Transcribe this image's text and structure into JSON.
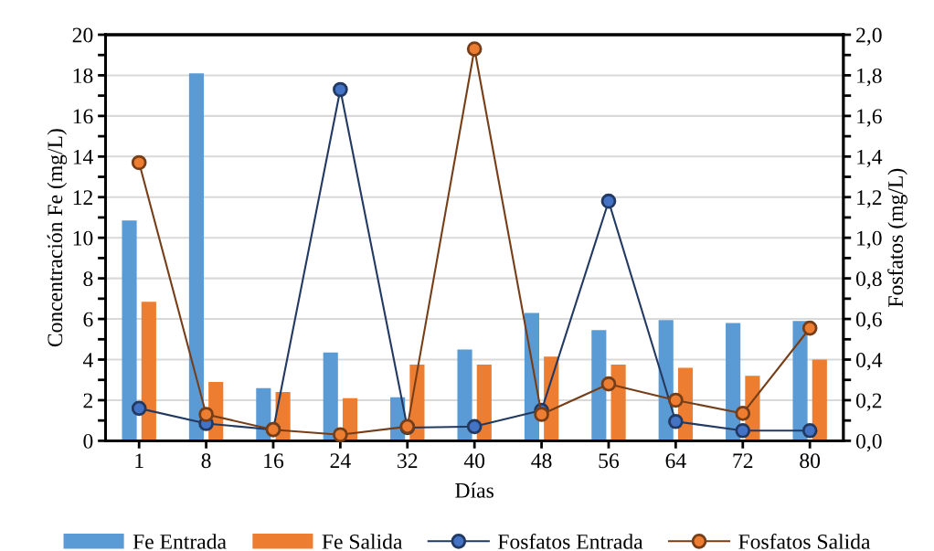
{
  "chart_data": {
    "type": "bar",
    "xlabel": "Días",
    "ylabel": "Concentración Fe (mg/L)",
    "y2label": "Fosfatos (mg/L)",
    "categories": [
      "1",
      "8",
      "16",
      "24",
      "32",
      "40",
      "48",
      "56",
      "64",
      "72",
      "80"
    ],
    "series": [
      {
        "name": "Fe Entrada",
        "color": "#5b9bd5",
        "values": [
          10.85,
          18.1,
          2.6,
          4.35,
          2.15,
          4.5,
          6.3,
          5.45,
          5.95,
          5.8,
          5.9
        ]
      },
      {
        "name": "Fe Salida",
        "color": "#ed7d31",
        "values": [
          6.85,
          2.9,
          2.4,
          2.1,
          3.75,
          3.75,
          4.15,
          3.75,
          3.6,
          3.2,
          4.0
        ]
      },
      {
        "name": "Fosfatos Entrada",
        "type": "line",
        "axis": "y2",
        "color": "#4472c4",
        "values": [
          0.16,
          0.085,
          0.055,
          1.73,
          0.065,
          0.07,
          0.15,
          1.18,
          0.095,
          0.05,
          0.05
        ]
      },
      {
        "name": "Fosfatos Salida",
        "type": "line",
        "axis": "y2",
        "color": "#ed7d31",
        "values": [
          1.37,
          0.13,
          0.055,
          0.03,
          0.07,
          1.93,
          0.13,
          0.28,
          0.2,
          0.135,
          0.555
        ]
      }
    ],
    "ylim": [
      0,
      20
    ],
    "yticks": [
      0,
      {
        "value": 1,
        "label": null
      },
      2,
      {
        "value": 3,
        "label": null
      },
      4,
      {
        "value": 5,
        "label": null
      },
      6,
      {
        "value": 7,
        "label": null
      },
      8,
      {
        "value": 9,
        "label": null
      },
      10,
      {
        "value": 11,
        "label": null
      },
      12,
      {
        "value": 13,
        "label": null
      },
      14,
      {
        "value": 15,
        "label": null
      },
      16,
      {
        "value": 17,
        "label": null
      },
      18,
      {
        "value": 19,
        "label": null
      },
      20
    ],
    "y2lim": [
      0,
      2
    ],
    "y2ticks": [
      {
        "value": 0,
        "label": "0,0"
      },
      {
        "value": 0.1,
        "label": null
      },
      {
        "value": 0.2,
        "label": "0,2"
      },
      {
        "value": 0.3,
        "label": null
      },
      {
        "value": 0.4,
        "label": "0,4"
      },
      {
        "value": 0.5,
        "label": null
      },
      {
        "value": 0.6,
        "label": "0,6"
      },
      {
        "value": 0.7,
        "label": null
      },
      {
        "value": 0.8,
        "label": "0,8"
      },
      {
        "value": 0.9,
        "label": null
      },
      {
        "value": 1.0,
        "label": "1,0"
      },
      {
        "value": 1.1,
        "label": null
      },
      {
        "value": 1.2,
        "label": "1,2"
      },
      {
        "value": 1.3,
        "label": null
      },
      {
        "value": 1.4,
        "label": "1,4"
      },
      {
        "value": 1.5,
        "label": null
      },
      {
        "value": 1.6,
        "label": "1,6"
      },
      {
        "value": 1.7,
        "label": null
      },
      {
        "value": 1.8,
        "label": "1,8"
      },
      {
        "value": 1.9,
        "label": null
      },
      {
        "value": 2.0,
        "label": "2,0"
      }
    ],
    "grid": "y",
    "legend": "bottom",
    "marker": "circle",
    "line_style": "solid"
  }
}
